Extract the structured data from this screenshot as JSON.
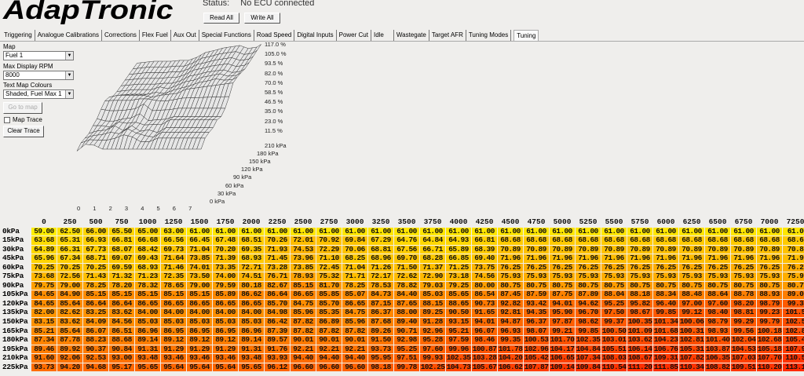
{
  "logo": "AdapTronic",
  "status": {
    "label": "Status:",
    "value": "No ECU connected"
  },
  "buttons": {
    "read_all": "Read All",
    "write_all": "Write All",
    "go_to_map": "Go to map",
    "clear_trace": "Clear Trace"
  },
  "tabs": [
    "Triggering",
    "Analogue Calibrations",
    "Corrections",
    "Flex Fuel",
    "Aux Out",
    "Special Functions",
    "Road Speed",
    "Digital Inputs",
    "Power Cut",
    "Idle",
    "Wastegate",
    "Target AFR",
    "Tuning Modes",
    "Tuning"
  ],
  "active_tab": "Tuning",
  "controls": {
    "map_label": "Map",
    "map_value": "Fuel 1",
    "max_rpm_label": "Max Display RPM",
    "max_rpm_value": "8000",
    "colours_label": "Text Map Colours",
    "colours_value": "Shaded, Fuel Max 1",
    "map_trace_label": "Map Trace",
    "map_trace_checked": false
  },
  "plot3d": {
    "z_labels": [
      "117.0 %",
      "105.0 %",
      "93.5 %",
      "82.0 %",
      "70.0 %",
      "58.5 %",
      "46.5 %",
      "35.0 %",
      "23.0 %",
      "11.5 %"
    ],
    "y_labels": [
      "210 kPa",
      "180 kPa",
      "150 kPa",
      "120 kPa",
      "90 kPa",
      "60 kPa",
      "30 kPa",
      "0 kPa"
    ],
    "x_labels": [
      "0",
      "1",
      "2",
      "3",
      "4",
      "5",
      "6",
      "7"
    ],
    "surface_color": "#e6e6e6",
    "line_color": "#333333"
  },
  "table": {
    "columns": [
      "0",
      "250",
      "500",
      "750",
      "1000",
      "1250",
      "1500",
      "1750",
      "2000",
      "2250",
      "2500",
      "2750",
      "3000",
      "3250",
      "3500",
      "3750",
      "4000",
      "4250",
      "4500",
      "4750",
      "5000",
      "5250",
      "5500",
      "5750",
      "6000",
      "6250",
      "6500",
      "6750",
      "7000",
      "7250"
    ],
    "rows": [
      {
        "label": "0kPa",
        "values": [
          "59.00",
          "62.50",
          "66.00",
          "65.50",
          "65.00",
          "63.00",
          "61.00",
          "61.00",
          "61.00",
          "61.00",
          "61.00",
          "61.00",
          "61.00",
          "61.00",
          "61.00",
          "61.00",
          "61.00",
          "61.00",
          "61.00",
          "61.00",
          "61.00",
          "61.00",
          "61.00",
          "61.00",
          "61.00",
          "61.00",
          "61.00",
          "61.00",
          "61.00",
          "61.0"
        ]
      },
      {
        "label": "15kPa",
        "values": [
          "63.68",
          "65.31",
          "66.93",
          "66.81",
          "66.68",
          "66.56",
          "66.45",
          "67.48",
          "68.51",
          "70.26",
          "72.01",
          "70.92",
          "69.84",
          "67.29",
          "64.76",
          "64.84",
          "64.93",
          "66.81",
          "68.68",
          "68.68",
          "68.68",
          "68.68",
          "68.68",
          "68.68",
          "68.68",
          "68.68",
          "68.68",
          "68.68",
          "68.68",
          "68.6"
        ]
      },
      {
        "label": "30kPa",
        "values": [
          "64.89",
          "66.31",
          "67.73",
          "68.07",
          "68.42",
          "69.73",
          "71.04",
          "70.20",
          "69.35",
          "71.93",
          "74.53",
          "72.29",
          "70.06",
          "68.81",
          "67.56",
          "66.71",
          "65.89",
          "68.39",
          "70.89",
          "70.89",
          "70.89",
          "70.89",
          "70.89",
          "70.89",
          "70.89",
          "70.89",
          "70.89",
          "70.89",
          "70.89",
          "70.8"
        ]
      },
      {
        "label": "45kPa",
        "values": [
          "65.96",
          "67.34",
          "68.71",
          "69.07",
          "69.43",
          "71.64",
          "73.85",
          "71.39",
          "68.93",
          "71.45",
          "73.96",
          "71.10",
          "68.25",
          "68.96",
          "69.70",
          "68.28",
          "66.85",
          "69.40",
          "71.96",
          "71.96",
          "71.96",
          "71.96",
          "71.96",
          "71.96",
          "71.96",
          "71.96",
          "71.96",
          "71.96",
          "71.96",
          "71.9"
        ]
      },
      {
        "label": "60kPa",
        "values": [
          "70.25",
          "70.25",
          "70.25",
          "69.59",
          "68.93",
          "71.46",
          "74.01",
          "73.35",
          "72.71",
          "73.28",
          "73.85",
          "72.45",
          "71.04",
          "71.26",
          "71.50",
          "71.37",
          "71.25",
          "73.75",
          "76.25",
          "76.25",
          "76.25",
          "76.25",
          "76.25",
          "76.25",
          "76.25",
          "76.25",
          "76.25",
          "76.25",
          "76.25",
          "76.2"
        ]
      },
      {
        "label": "75kPa",
        "values": [
          "73.68",
          "72.56",
          "71.43",
          "71.32",
          "71.23",
          "72.35",
          "73.50",
          "74.00",
          "74.51",
          "76.71",
          "78.93",
          "75.32",
          "71.71",
          "72.17",
          "72.62",
          "72.90",
          "73.18",
          "74.56",
          "75.93",
          "75.93",
          "75.93",
          "75.93",
          "75.93",
          "75.93",
          "75.93",
          "75.93",
          "75.93",
          "75.93",
          "75.93",
          "75.9"
        ]
      },
      {
        "label": "90kPa",
        "values": [
          "79.75",
          "79.00",
          "78.25",
          "78.20",
          "78.32",
          "78.65",
          "79.00",
          "79.59",
          "80.18",
          "82.67",
          "85.15",
          "81.70",
          "78.25",
          "78.53",
          "78.82",
          "79.03",
          "79.25",
          "80.00",
          "80.75",
          "80.75",
          "80.75",
          "80.75",
          "80.75",
          "80.75",
          "80.75",
          "80.75",
          "80.75",
          "80.75",
          "80.75",
          "80.7"
        ]
      },
      {
        "label": "105kPa",
        "values": [
          "84.65",
          "84.90",
          "85.15",
          "85.15",
          "85.15",
          "85.15",
          "85.15",
          "85.89",
          "86.62",
          "86.64",
          "86.65",
          "85.85",
          "85.07",
          "84.73",
          "84.40",
          "85.03",
          "85.65",
          "86.54",
          "87.45",
          "87.59",
          "87.75",
          "87.89",
          "88.04",
          "88.18",
          "88.34",
          "88.48",
          "88.64",
          "88.78",
          "88.93",
          "89.0"
        ]
      },
      {
        "label": "120kPa",
        "values": [
          "84.65",
          "85.64",
          "86.64",
          "86.64",
          "86.65",
          "86.65",
          "86.65",
          "86.65",
          "86.65",
          "85.70",
          "84.75",
          "85.70",
          "86.65",
          "87.15",
          "87.65",
          "88.15",
          "88.65",
          "90.73",
          "92.82",
          "93.42",
          "94.01",
          "94.62",
          "95.25",
          "95.82",
          "96.40",
          "97.00",
          "97.60",
          "98.20",
          "98.79",
          "99.3"
        ]
      },
      {
        "label": "135kPa",
        "values": [
          "82.00",
          "82.62",
          "83.25",
          "83.62",
          "84.00",
          "84.00",
          "84.00",
          "84.00",
          "84.00",
          "84.98",
          "85.96",
          "85.35",
          "84.75",
          "86.37",
          "88.00",
          "89.25",
          "90.50",
          "91.65",
          "92.81",
          "94.35",
          "95.90",
          "96.70",
          "97.50",
          "98.67",
          "99.85",
          "99.12",
          "98.40",
          "98.81",
          "99.23",
          "101.5"
        ]
      },
      {
        "label": "150kPa",
        "values": [
          "83.15",
          "83.62",
          "84.09",
          "84.56",
          "85.03",
          "85.03",
          "85.03",
          "85.03",
          "85.03",
          "86.42",
          "87.82",
          "86.89",
          "85.96",
          "87.68",
          "89.40",
          "91.28",
          "93.15",
          "94.01",
          "94.87",
          "96.37",
          "97.87",
          "98.62",
          "99.37",
          "100.35",
          "101.34",
          "100.06",
          "98.79",
          "99.29",
          "99.79",
          "102.5"
        ]
      },
      {
        "label": "165kPa",
        "values": [
          "85.21",
          "85.64",
          "86.07",
          "86.51",
          "86.96",
          "86.95",
          "86.95",
          "86.95",
          "86.96",
          "87.39",
          "87.82",
          "87.82",
          "87.82",
          "89.26",
          "90.71",
          "92.96",
          "95.21",
          "96.07",
          "96.93",
          "98.07",
          "99.21",
          "99.85",
          "100.50",
          "101.09",
          "101.68",
          "100.31",
          "98.93",
          "99.56",
          "100.18",
          "102.8"
        ]
      },
      {
        "label": "180kPa",
        "values": [
          "87.34",
          "87.78",
          "88.23",
          "88.68",
          "89.14",
          "89.12",
          "89.12",
          "89.12",
          "89.14",
          "89.57",
          "90.01",
          "90.01",
          "90.01",
          "91.50",
          "92.98",
          "95.28",
          "97.59",
          "98.46",
          "99.35",
          "100.53",
          "101.70",
          "102.35",
          "103.01",
          "103.62",
          "104.23",
          "102.81",
          "101.40",
          "102.04",
          "102.68",
          "105.4"
        ]
      },
      {
        "label": "195kPa",
        "values": [
          "89.46",
          "89.92",
          "90.37",
          "90.84",
          "91.31",
          "91.29",
          "91.29",
          "91.29",
          "91.31",
          "91.76",
          "92.21",
          "92.21",
          "92.21",
          "93.73",
          "95.25",
          "97.60",
          "99.96",
          "100.87",
          "101.78",
          "102.96",
          "104.17",
          "104.84",
          "105.51",
          "106.14",
          "106.76",
          "105.31",
          "103.87",
          "104.53",
          "105.18",
          "107.9"
        ]
      },
      {
        "label": "210kPa",
        "values": [
          "91.60",
          "92.06",
          "92.53",
          "93.00",
          "93.48",
          "93.46",
          "93.46",
          "93.46",
          "93.48",
          "93.93",
          "94.40",
          "94.40",
          "94.40",
          "95.95",
          "97.51",
          "99.93",
          "102.35",
          "103.28",
          "104.20",
          "105.42",
          "106.65",
          "107.34",
          "108.03",
          "108.67",
          "109.31",
          "107.82",
          "106.35",
          "107.03",
          "107.70",
          "110.5"
        ]
      },
      {
        "label": "225kPa",
        "values": [
          "93.73",
          "94.20",
          "94.68",
          "95.17",
          "95.65",
          "95.64",
          "95.64",
          "95.64",
          "95.65",
          "96.12",
          "96.60",
          "96.60",
          "96.60",
          "98.18",
          "99.78",
          "102.25",
          "104.73",
          "105.67",
          "106.62",
          "107.87",
          "109.14",
          "109.84",
          "110.54",
          "111.20",
          "111.85",
          "110.34",
          "108.82",
          "109.51",
          "110.20",
          "113.1"
        ]
      }
    ],
    "colour_scale": {
      "low": "#ffee00",
      "mid": "#ff8c00",
      "high": "#ff2a00"
    }
  }
}
